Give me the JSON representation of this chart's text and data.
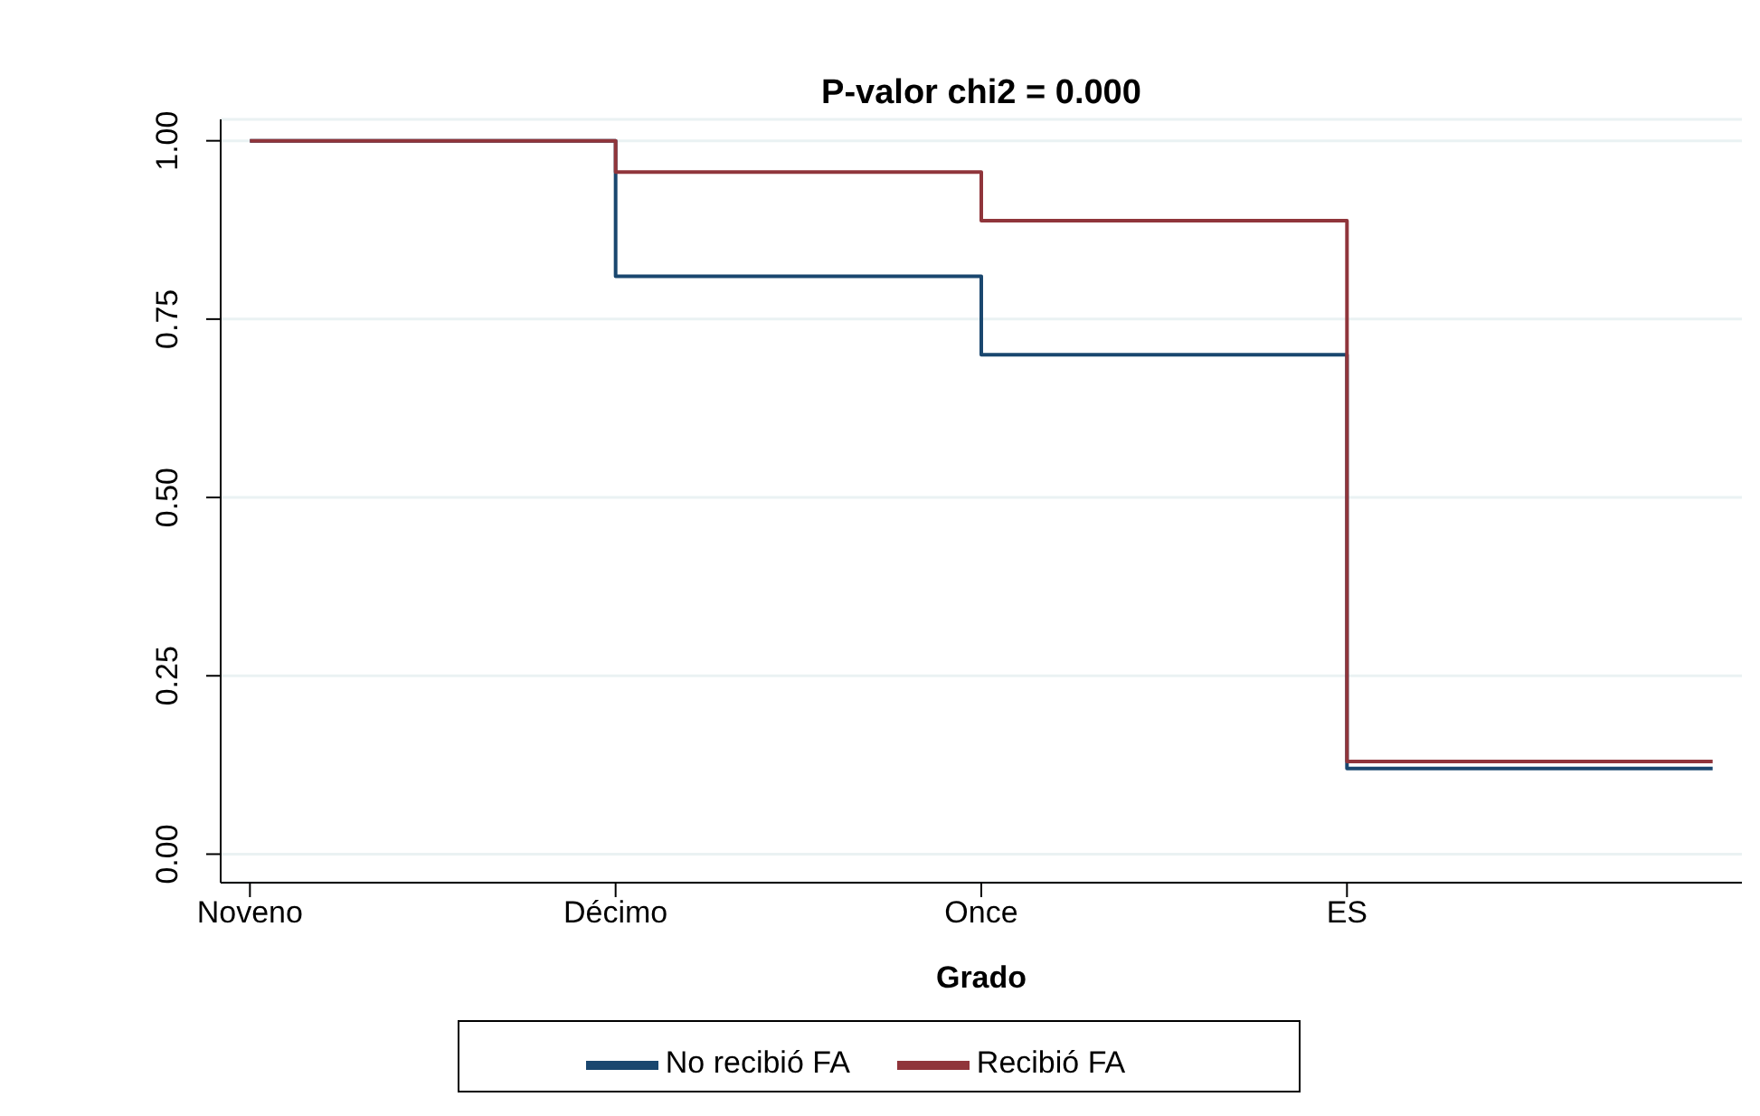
{
  "chart_data": {
    "type": "step",
    "title": "P-valor chi2 = 0.000",
    "xlabel": "Grado",
    "categories": [
      "Noveno",
      "Décimo",
      "Once",
      "ES",
      null
    ],
    "series": [
      {
        "name": "No recibió FA",
        "color": "#1a476f",
        "values": [
          1,
          0.81,
          0.7,
          0.12,
          0.12
        ]
      },
      {
        "name": "Recibió FA",
        "color": "#90353b",
        "values": [
          1,
          0.956,
          0.888,
          0.13,
          0.13
        ]
      }
    ],
    "ylim": [
      -0.04,
      1.03
    ],
    "yticks": [
      {
        "value": 0,
        "label": "0.00"
      },
      {
        "value": 0.25,
        "label": "0.25"
      },
      {
        "value": 0.5,
        "label": "0.50"
      },
      {
        "value": 0.75,
        "label": "0.75"
      },
      {
        "value": 1,
        "label": "1.00"
      }
    ],
    "grid": "y",
    "legend": "bottom"
  }
}
